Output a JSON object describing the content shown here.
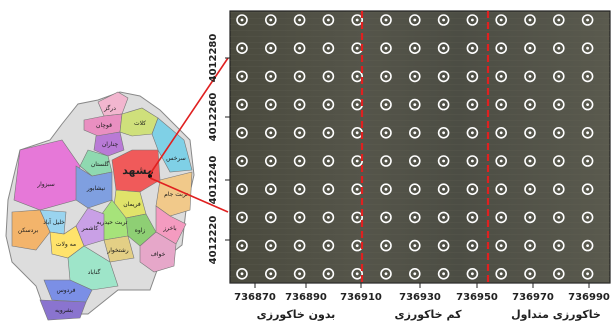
{
  "province_map": {
    "city_label": "مشهد",
    "regions": [
      {
        "name": "درگز",
        "color": "#f2b6cf"
      },
      {
        "name": "قوچان",
        "color": "#e98fc1"
      },
      {
        "name": "چناران",
        "color": "#b97ad6"
      },
      {
        "name": "کلات",
        "color": "#cfe07b"
      },
      {
        "name": "سرخس",
        "color": "#7fd0e6"
      },
      {
        "name": "گلستان",
        "color": "#8fd9b0"
      },
      {
        "name": "سبزوار",
        "color": "#e678d8"
      },
      {
        "name": "نیشابور",
        "color": "#7f9fe0"
      },
      {
        "name": "مشهد",
        "color": "#f05a5a"
      },
      {
        "name": "فریمان",
        "color": "#e0e36a"
      },
      {
        "name": "تربت جام",
        "color": "#f1c98a"
      },
      {
        "name": "تربت حیدریه",
        "color": "#a6e37a"
      },
      {
        "name": "کاشمر",
        "color": "#c9a0e6"
      },
      {
        "name": "بردسکن",
        "color": "#f3b46b"
      },
      {
        "name": "خلیل آباد",
        "color": "#9ad4ef"
      },
      {
        "name": "مه ولات",
        "color": "#ffe36b"
      },
      {
        "name": "رشتخوار",
        "color": "#e3cf85"
      },
      {
        "name": "زاوه",
        "color": "#8ecf74"
      },
      {
        "name": "باخرز",
        "color": "#f49bc0"
      },
      {
        "name": "خواف",
        "color": "#e6a7c9"
      },
      {
        "name": "گناباد",
        "color": "#9ee5c9"
      },
      {
        "name": "فردوس",
        "color": "#7b8fe6"
      },
      {
        "name": "بشرویه",
        "color": "#8a74cf"
      }
    ]
  },
  "field_map": {
    "x_ticks": [
      "736870",
      "736890",
      "736910",
      "736930",
      "736950",
      "736970",
      "736990"
    ],
    "y_ticks": [
      "4012280",
      "4012260",
      "4012240",
      "4012220"
    ],
    "zones": [
      "بدون خاکورزی",
      "کم خاکورزی",
      "خاکورزی متداول"
    ],
    "grid_rows": 10,
    "grid_cols": 13
  },
  "colors": {
    "boundary_line": "#e02020",
    "connector_line": "#e02020",
    "sample_marker": "#ffffff"
  }
}
